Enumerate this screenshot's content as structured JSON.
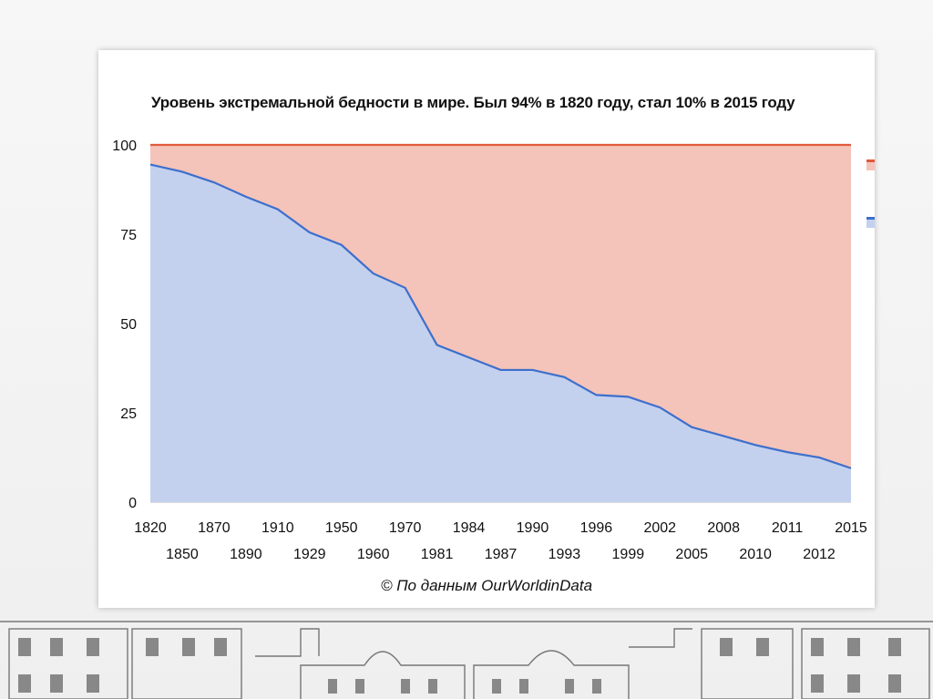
{
  "chart_data": {
    "type": "area",
    "title": "Уровень экстремальной бедности в мире. Был 94% в 1820 году, стал 10% в 2015 году",
    "source": "© По данным OurWorldinData",
    "ylim": [
      0,
      100
    ],
    "y_ticks": [
      "0",
      "25",
      "50",
      "75",
      "100"
    ],
    "grid": true,
    "legend": "right",
    "categories": [
      "1820",
      "1850",
      "1870",
      "1890",
      "1910",
      "1929",
      "1950",
      "1960",
      "1970",
      "1981",
      "1984",
      "1987",
      "1990",
      "1993",
      "1996",
      "1999",
      "2002",
      "2005",
      "2008",
      "2010",
      "2011",
      "2012",
      "2015"
    ],
    "series": [
      {
        "name": "",
        "color": "#3d6fcc",
        "fill": "#c3d1ef",
        "values": [
          94.5,
          92.5,
          89.5,
          85.5,
          82,
          75.5,
          72,
          64,
          60,
          44,
          40.5,
          37,
          37,
          35,
          30,
          29.5,
          26.5,
          21,
          18.5,
          16,
          14,
          12.5,
          9.5
        ]
      },
      {
        "name": "",
        "color": "#e05a3c",
        "fill": "#f4c3b9",
        "values": [
          100,
          100,
          100,
          100,
          100,
          100,
          100,
          100,
          100,
          100,
          100,
          100,
          100,
          100,
          100,
          100,
          100,
          100,
          100,
          100,
          100,
          100,
          100
        ]
      }
    ]
  }
}
